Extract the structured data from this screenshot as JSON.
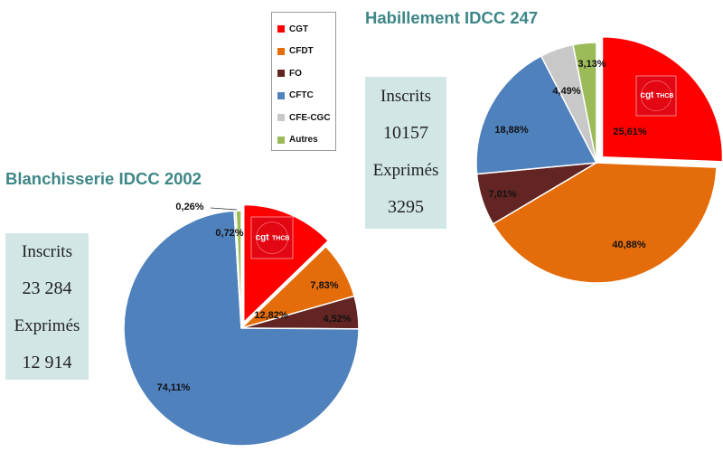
{
  "legend": {
    "items": [
      {
        "label": "CGT",
        "color": "#ff0000"
      },
      {
        "label": "CFDT",
        "color": "#e46c0a"
      },
      {
        "label": "FO",
        "color": "#632523"
      },
      {
        "label": "CFTC",
        "color": "#4f81bd"
      },
      {
        "label": "CFE-CGC",
        "color": "#c8c8c8"
      },
      {
        "label": "Autres",
        "color": "#9bbb59"
      }
    ]
  },
  "logo": {
    "text_main": "cgt",
    "text_sub": "THCB"
  },
  "chart_data": [
    {
      "type": "pie",
      "title": "Blanchisserie IDCC 2002",
      "categories": [
        "CGT",
        "CFDT",
        "FO",
        "CFTC",
        "CFE-CGC",
        "Autres"
      ],
      "values": [
        12.82,
        7.83,
        4.52,
        74.11,
        0.26,
        0.72
      ],
      "labels": [
        "12,82%",
        "7,83%",
        "4,52%",
        "74,11%",
        "0,26%",
        "0,72%"
      ],
      "exploded": "CGT",
      "stats": {
        "inscrits_label": "Inscrits",
        "inscrits": "23 284",
        "exprimes_label": "Exprimés",
        "exprimes": "12 914"
      }
    },
    {
      "type": "pie",
      "title": "Habillement IDCC 247",
      "categories": [
        "CGT",
        "CFDT",
        "FO",
        "CFTC",
        "CFE-CGC",
        "Autres"
      ],
      "values": [
        25.61,
        40.88,
        7.01,
        18.88,
        4.49,
        3.13
      ],
      "labels": [
        "25,61%",
        "40,88%",
        "7,01%",
        "18,88%",
        "4,49%",
        "3,13%"
      ],
      "exploded": "CGT",
      "stats": {
        "inscrits_label": "Inscrits",
        "inscrits": "10157",
        "exprimes_label": "Exprimés",
        "exprimes": "3295"
      }
    }
  ]
}
